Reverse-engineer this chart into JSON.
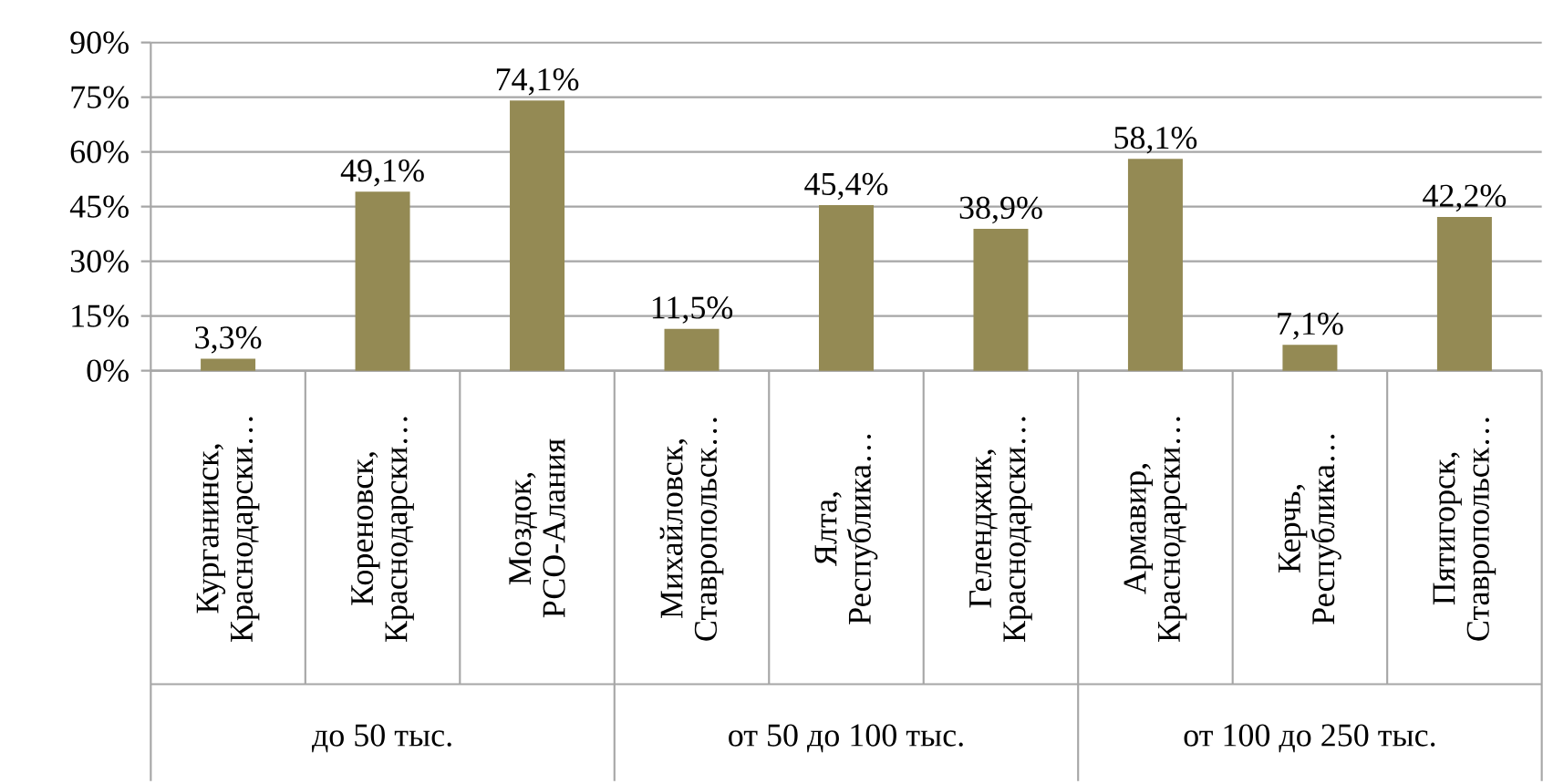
{
  "chart_data": {
    "type": "bar",
    "categories": [
      "Курганинск, Краснодарски…",
      "Кореновск, Краснодарски…",
      "Моздок, РСО-Алания",
      "Михайловск, Ставропольск…",
      "Ялта, Республика…",
      "Геленджик, Краснодарски…",
      "Армавир, Краснодарски…",
      "Керчь, Республика…",
      "Пятигорск, Ставропольск…"
    ],
    "values": [
      3.3,
      49.1,
      74.1,
      11.5,
      45.4,
      38.9,
      58.1,
      7.1,
      42.2
    ],
    "value_labels": [
      "3,3%",
      "49,1%",
      "74,1%",
      "11,5%",
      "45,4%",
      "38,9%",
      "58,1%",
      "7,1%",
      "42,2%"
    ],
    "color": "#948a54",
    "ylim": [
      0,
      90
    ],
    "yticks": [
      {
        "value": 0,
        "label": "0%"
      },
      {
        "value": 15,
        "label": "15%"
      },
      {
        "value": 30,
        "label": "30%"
      },
      {
        "value": 45,
        "label": "45%"
      },
      {
        "value": 60,
        "label": "60%"
      },
      {
        "value": 75,
        "label": "75%"
      },
      {
        "value": 90,
        "label": "90%"
      }
    ],
    "grid": "y",
    "annotations": [
      "до 50 тыс.",
      "от 50 до 100 тыс.",
      "от 100 до 250 тыс."
    ]
  }
}
